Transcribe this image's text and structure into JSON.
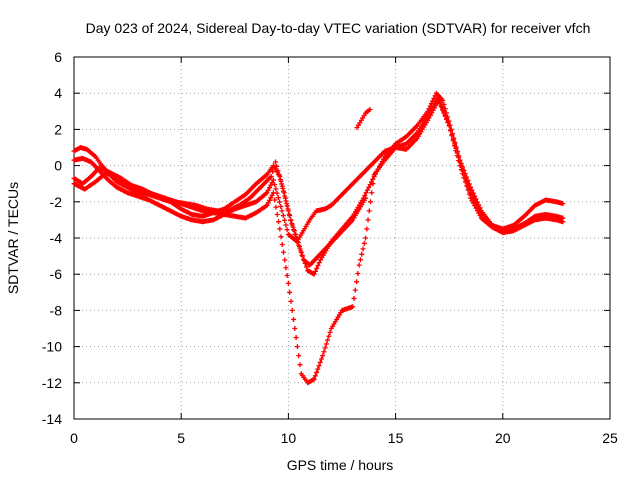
{
  "chart_data": {
    "type": "scatter",
    "title": "Day 023 of 2024, Sidereal Day-to-day VTEC variation (SDTVAR) for receiver vfch",
    "xlabel": "GPS time / hours",
    "ylabel": "SDTVAR / TECUs",
    "xlim": [
      0,
      25
    ],
    "ylim": [
      -14,
      6
    ],
    "xticks": [
      0,
      5,
      10,
      15,
      20,
      25
    ],
    "yticks": [
      -14,
      -12,
      -10,
      -8,
      -6,
      -4,
      -2,
      0,
      2,
      4,
      6
    ],
    "grid": true,
    "marker": "+",
    "color": "#ff0000",
    "series": [
      {
        "name": "track-1",
        "x": [
          0.0,
          0.3,
          0.6,
          1.0,
          1.3,
          1.6,
          2.0,
          2.5,
          3.0,
          3.5,
          4.0,
          4.5,
          5.0,
          5.5,
          6.0,
          6.5,
          7.0,
          7.5,
          8.0,
          8.5,
          9.0,
          9.3,
          9.6,
          10.0,
          10.3,
          10.6,
          10.9,
          11.2,
          11.5,
          12.0,
          12.5,
          13.0,
          13.5,
          14.0,
          14.5,
          15.0,
          15.5,
          16.0,
          16.5,
          16.9,
          17.2,
          17.6,
          18.0,
          18.5,
          19.0,
          19.5,
          20.0,
          20.5,
          21.0,
          21.5,
          22.0,
          22.5,
          22.8
        ],
        "y": [
          0.8,
          1.0,
          0.9,
          0.5,
          0.0,
          -0.4,
          -0.9,
          -1.2,
          -1.5,
          -1.6,
          -1.8,
          -2.0,
          -2.4,
          -2.7,
          -2.8,
          -2.6,
          -2.4,
          -2.0,
          -1.6,
          -1.0,
          -0.5,
          0.0,
          -0.6,
          -2.5,
          -3.8,
          -4.8,
          -5.8,
          -6.0,
          -5.2,
          -4.2,
          -3.5,
          -2.8,
          -1.8,
          -0.6,
          0.5,
          1.2,
          1.6,
          2.2,
          3.0,
          4.0,
          3.6,
          2.0,
          0.3,
          -1.2,
          -2.5,
          -3.3,
          -3.5,
          -3.3,
          -2.8,
          -2.2,
          -1.9,
          -2.0,
          -2.1
        ]
      },
      {
        "name": "track-2",
        "x": [
          0.0,
          0.4,
          0.8,
          1.2,
          1.6,
          2.0,
          2.5,
          3.0,
          3.5,
          4.0,
          4.5,
          5.0,
          5.5,
          6.0,
          6.5,
          7.0,
          7.5,
          8.0,
          8.5,
          9.0,
          9.3,
          9.7,
          10.0,
          10.4,
          10.7,
          11.0,
          11.3,
          11.7,
          12.0,
          12.5,
          13.0,
          13.5,
          14.0,
          14.5,
          15.0,
          15.5,
          16.0,
          16.5,
          17.0,
          17.5,
          18.0,
          18.5,
          19.0,
          19.5,
          20.0,
          20.5,
          21.0,
          21.5,
          22.0,
          22.5,
          22.8
        ],
        "y": [
          0.3,
          0.4,
          0.2,
          -0.3,
          -0.8,
          -1.2,
          -1.5,
          -1.7,
          -1.9,
          -2.2,
          -2.5,
          -2.8,
          -3.0,
          -3.1,
          -3.0,
          -2.7,
          -2.4,
          -2.2,
          -2.0,
          -1.5,
          -0.8,
          -2.5,
          -3.8,
          -4.2,
          -3.6,
          -3.0,
          -2.5,
          -2.4,
          -2.2,
          -1.6,
          -1.0,
          -0.4,
          0.2,
          0.8,
          1.0,
          0.9,
          1.5,
          2.5,
          3.6,
          2.2,
          0.2,
          -1.5,
          -2.6,
          -3.3,
          -3.6,
          -3.5,
          -3.2,
          -2.8,
          -2.7,
          -2.8,
          -2.9
        ]
      },
      {
        "name": "track-3",
        "x": [
          0.0,
          0.5,
          1.0,
          1.5,
          2.0,
          2.5,
          3.0,
          3.5,
          4.0,
          4.5,
          5.0,
          5.5,
          6.0,
          6.5,
          7.0,
          7.5,
          8.0,
          8.5,
          9.0,
          9.3,
          9.6,
          10.0,
          10.3,
          10.6,
          10.9,
          11.2,
          11.6,
          12.0,
          12.5,
          13.0,
          13.3,
          13.6,
          14.0,
          14.5,
          15.0,
          15.5,
          16.0,
          16.5,
          17.0,
          17.5,
          18.0,
          18.5,
          19.0,
          19.5,
          20.0,
          20.5,
          21.0,
          21.5,
          22.0,
          22.5,
          22.8
        ],
        "y": [
          -1.0,
          -1.3,
          -0.9,
          -0.4,
          -0.7,
          -1.0,
          -1.3,
          -1.5,
          -1.7,
          -1.9,
          -2.1,
          -2.3,
          -2.5,
          -2.6,
          -2.7,
          -2.8,
          -2.9,
          -2.6,
          -2.2,
          -1.5,
          -3.5,
          -6.5,
          -9.0,
          -11.5,
          -12.0,
          -11.8,
          -10.5,
          -9.0,
          -8.0,
          -7.8,
          -5.5,
          -4.0,
          -0.5,
          0.3,
          1.0,
          1.2,
          1.8,
          2.8,
          3.8,
          2.2,
          0.0,
          -1.8,
          -2.9,
          -3.4,
          -3.7,
          -3.6,
          -3.3,
          -3.0,
          -2.9,
          -3.0,
          -3.1
        ]
      },
      {
        "name": "track-4",
        "x": [
          0.0,
          0.4,
          0.8,
          1.2,
          1.7,
          2.2,
          2.7,
          3.2,
          3.7,
          4.2,
          4.7,
          5.2,
          5.7,
          6.2,
          6.7,
          7.2,
          7.7,
          8.2,
          8.7,
          9.2,
          9.4,
          9.8,
          10.1,
          10.4,
          10.7,
          11.0,
          11.4,
          11.8,
          12.2,
          12.6,
          13.0,
          13.3,
          13.6
        ],
        "y": [
          -0.7,
          -1.0,
          -0.6,
          -0.1,
          -0.4,
          -0.7,
          -1.1,
          -1.3,
          -1.6,
          -1.8,
          -2.0,
          -2.1,
          -2.2,
          -2.4,
          -2.5,
          -2.5,
          -2.2,
          -1.8,
          -1.2,
          -0.6,
          0.2,
          -1.5,
          -3.0,
          -4.0,
          -5.2,
          -5.5,
          -5.0,
          -4.5,
          -4.0,
          -3.5,
          -3.0,
          -2.4,
          -1.8
        ]
      },
      {
        "name": "track-5",
        "x": [
          13.2,
          13.4,
          13.6,
          13.8
        ],
        "y": [
          2.1,
          2.5,
          2.9,
          3.1
        ]
      }
    ]
  }
}
